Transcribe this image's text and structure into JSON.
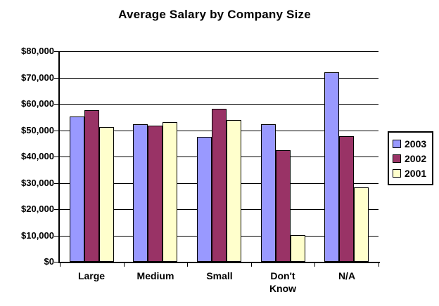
{
  "background_color": "#FFFFFF",
  "axis_color": "#000000",
  "chart_data": {
    "type": "bar",
    "title": "Average Salary by Company Size",
    "xlabel": "",
    "ylabel": "",
    "categories": [
      "Large",
      "Medium",
      "Small",
      "Don't Know",
      "N/A"
    ],
    "series": [
      {
        "name": "2003",
        "color": "#9999FF",
        "values": [
          55100,
          52300,
          47500,
          52300,
          72100
        ]
      },
      {
        "name": "2002",
        "color": "#993366",
        "values": [
          57700,
          51700,
          58000,
          42500,
          47600
        ]
      },
      {
        "name": "2001",
        "color": "#FFFFCC",
        "values": [
          51300,
          53100,
          53800,
          10000,
          28200
        ]
      }
    ],
    "ylim": [
      0,
      80000
    ],
    "ytick_step": 10000,
    "ytick_labels": [
      "$0",
      "$10,000",
      "$20,000",
      "$30,000",
      "$40,000",
      "$50,000",
      "$60,000",
      "$70,000",
      "$80,000"
    ],
    "grid": true,
    "legend_position": "right",
    "legend_entries": [
      "2003",
      "2002",
      "2001"
    ]
  }
}
